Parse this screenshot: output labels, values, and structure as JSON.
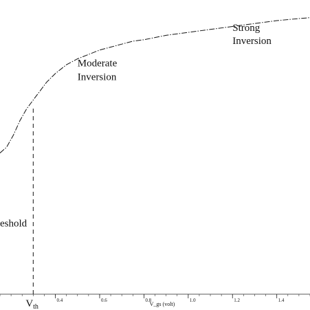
{
  "chart_data": {
    "type": "line",
    "title": "",
    "xlabel": "V_gs (volt)",
    "ylabel": "",
    "xlim": [
      0.15,
      1.55
    ],
    "ylim": [
      0,
      1
    ],
    "grid": false,
    "x_ticks": [
      {
        "value": 0.4,
        "label": "0.4"
      },
      {
        "value": 0.6,
        "label": "0.6"
      },
      {
        "value": 0.8,
        "label": "0.8"
      },
      {
        "value": 1.0,
        "label": "1.0"
      },
      {
        "value": 1.2,
        "label": "1.2"
      },
      {
        "value": 1.4,
        "label": "1.4"
      }
    ],
    "series": [
      {
        "style": "dash-dot",
        "x": [
          0.15,
          0.18,
          0.21,
          0.24,
          0.27,
          0.3,
          0.33,
          0.36,
          0.4,
          0.45,
          0.5,
          0.55,
          0.6,
          0.65,
          0.7,
          0.75,
          0.8,
          0.9,
          1.0,
          1.1,
          1.2,
          1.3,
          1.4,
          1.5,
          1.55
        ],
        "y": [
          0.48,
          0.5,
          0.54,
          0.59,
          0.63,
          0.66,
          0.69,
          0.72,
          0.75,
          0.78,
          0.8,
          0.815,
          0.83,
          0.84,
          0.85,
          0.86,
          0.865,
          0.88,
          0.89,
          0.9,
          0.91,
          0.92,
          0.93,
          0.937,
          0.94
        ]
      }
    ],
    "threshold_marker": {
      "x": 0.3,
      "label_main": "V",
      "label_sub": "th"
    },
    "annotations": [
      {
        "lines": [
          "Strong",
          "Inversion"
        ],
        "x": 1.2,
        "y": 0.895
      },
      {
        "lines": [
          "Moderate",
          "Inversion"
        ],
        "x": 0.5,
        "y": 0.775
      },
      {
        "lines": [
          "eshold"
        ],
        "x": 0.15,
        "y": 0.23
      }
    ]
  }
}
